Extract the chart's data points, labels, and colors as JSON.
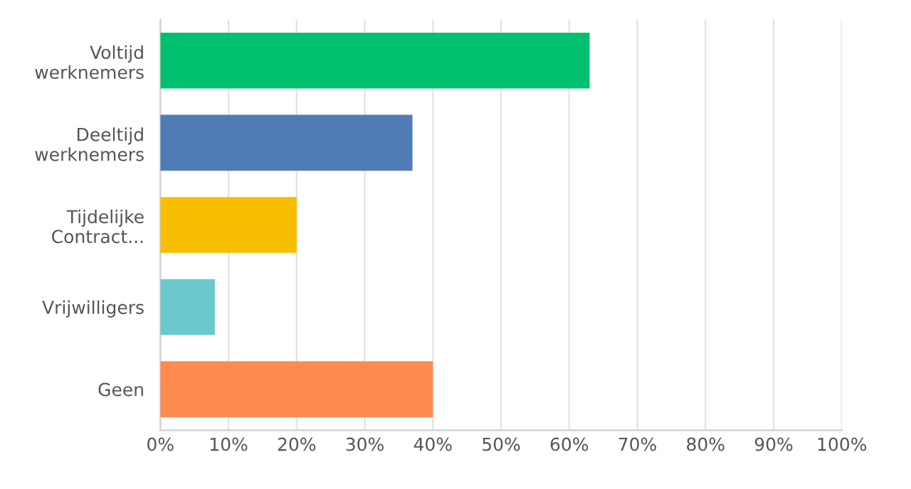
{
  "chart_data": {
    "type": "bar",
    "orientation": "horizontal",
    "categories": [
      "Voltijd\nwerknemers",
      "Deeltijd\nwerknemers",
      "Tijdelijke\nContract...",
      "Vrijwilligers",
      "Geen"
    ],
    "values": [
      63,
      37,
      20,
      8,
      40
    ],
    "colors": [
      "#00bf6f",
      "#507cb6",
      "#f9be00",
      "#6bc8cd",
      "#ff8b4f"
    ],
    "xlim": [
      0,
      100
    ],
    "xticks": [
      {
        "value": 0,
        "label": "0%"
      },
      {
        "value": 10,
        "label": "10%"
      },
      {
        "value": 20,
        "label": "20%"
      },
      {
        "value": 30,
        "label": "30%"
      },
      {
        "value": 40,
        "label": "40%"
      },
      {
        "value": 50,
        "label": "50%"
      },
      {
        "value": 60,
        "label": "60%"
      },
      {
        "value": 70,
        "label": "70%"
      },
      {
        "value": 80,
        "label": "80%"
      },
      {
        "value": 90,
        "label": "90%"
      },
      {
        "value": 100,
        "label": "100%"
      }
    ],
    "grid": "x"
  }
}
